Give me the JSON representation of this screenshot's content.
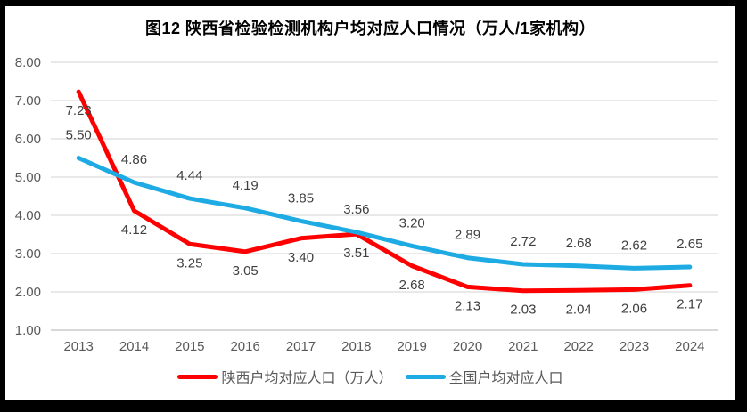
{
  "title": "图12  陕西省检验检测机构户均对应人口情况（万人/1家机构）",
  "chart_data": {
    "type": "line",
    "x": [
      "2013",
      "2014",
      "2015",
      "2016",
      "2017",
      "2018",
      "2019",
      "2020",
      "2021",
      "2022",
      "2023",
      "2024"
    ],
    "series": [
      {
        "name": "陕西户均对应人口（万人）",
        "color": "#fe0000",
        "values": [
          7.23,
          4.12,
          3.25,
          3.05,
          3.4,
          3.51,
          2.68,
          2.13,
          2.03,
          2.04,
          2.06,
          2.17
        ],
        "label_position": "below"
      },
      {
        "name": "全国户均对应人口",
        "color": "#1eaae3",
        "values": [
          5.5,
          4.86,
          4.44,
          4.19,
          3.85,
          3.56,
          3.2,
          2.89,
          2.72,
          2.68,
          2.62,
          2.65
        ],
        "label_position": "above"
      }
    ],
    "ylim": [
      1.0,
      8.0
    ],
    "ytick_step": 1.0,
    "ytick_labels": [
      "1.00",
      "2.00",
      "3.00",
      "4.00",
      "5.00",
      "6.00",
      "7.00",
      "8.00"
    ],
    "xlabel": "",
    "ylabel": "",
    "grid": true,
    "legend_position": "bottom",
    "colors": {
      "gridline": "#dcdcdc",
      "axis_line": "#c0c0c0",
      "tick_label": "#595959",
      "data_label": "#404040",
      "title": "#000000",
      "frame": "#000000"
    }
  }
}
